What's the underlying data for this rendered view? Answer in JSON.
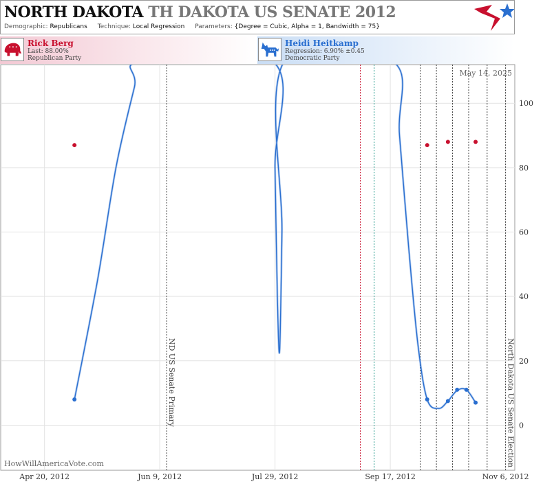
{
  "header": {
    "state": "NORTH DAKOTA",
    "race": "TH DAKOTA US SENATE 2012",
    "demographic_key": "Demographic:",
    "demographic_value": "Republicans",
    "technique_key": "Technique:",
    "technique_value": "Local Regression",
    "parameters_key": "Parameters:",
    "parameters_value": "{Degree = Cubic, Alpha = 1, Bandwidth = 75}"
  },
  "candidates": {
    "rep": {
      "name": "Rick Berg",
      "line1": "Last: 88.00%",
      "line2": "Republican Party",
      "icon": "elephant-icon"
    },
    "dem": {
      "name": "Heidi Heitkamp",
      "line1": "Regression: 6.90% ±0.45",
      "line2": "Democratic Party",
      "icon": "donkey-icon"
    }
  },
  "colors": {
    "rep": "#c8102e",
    "dem": "#2a6fd0"
  },
  "chart_data": {
    "type": "scatter",
    "title": "",
    "date_stamp": "May 14, 2025",
    "watermark": "HowWillAmericaVote.com",
    "xlabel": "",
    "ylabel": "",
    "x_ticks": [
      "Apr 20, 2012",
      "Jun 9, 2012",
      "Jul 29, 2012",
      "Sep 17, 2012",
      "Nov 6, 2012"
    ],
    "x_range": [
      "2012-04-01",
      "2012-11-10"
    ],
    "ylim": [
      -14,
      112
    ],
    "y_ticks": [
      0,
      20,
      40,
      60,
      80,
      100
    ],
    "grid": true,
    "events": [
      {
        "date": "2012-06-12",
        "label": "ND US Senate Primary",
        "color": "#444444"
      },
      {
        "date": "2012-09-04",
        "label": "",
        "color": "#c8102e"
      },
      {
        "date": "2012-09-10",
        "label": "",
        "color": "#2a9d8f"
      },
      {
        "date": "2012-09-30",
        "label": "",
        "color": "#444444"
      },
      {
        "date": "2012-10-07",
        "label": "",
        "color": "#444444"
      },
      {
        "date": "2012-10-14",
        "label": "",
        "color": "#444444"
      },
      {
        "date": "2012-10-21",
        "label": "",
        "color": "#444444"
      },
      {
        "date": "2012-10-29",
        "label": "",
        "color": "#444444"
      },
      {
        "date": "2012-11-06",
        "label": "North Dakota US Senate Election",
        "color": "#444444"
      }
    ],
    "series": [
      {
        "name": "Rick Berg",
        "color": "#c8102e",
        "points": [
          {
            "x": "2012-05-03",
            "y": 87
          },
          {
            "x": "2012-10-03",
            "y": 87
          },
          {
            "x": "2012-10-12",
            "y": 88
          },
          {
            "x": "2012-10-24",
            "y": 88
          }
        ]
      },
      {
        "name": "Heidi Heitkamp",
        "color": "#2a6fd0",
        "points": [
          {
            "x": "2012-05-03",
            "y": 8
          },
          {
            "x": "2012-10-03",
            "y": 8
          },
          {
            "x": "2012-10-12",
            "y": 7.5
          },
          {
            "x": "2012-10-16",
            "y": 11
          },
          {
            "x": "2012-10-20",
            "y": 11
          },
          {
            "x": "2012-10-24",
            "y": 7
          }
        ],
        "regression": [
          {
            "x": "2012-05-03",
            "y": 8
          },
          {
            "x": "2012-05-13",
            "y": 45
          },
          {
            "x": "2012-05-21",
            "y": 80
          },
          {
            "x": "2012-05-29",
            "y": 105
          },
          {
            "x": "2012-06-01",
            "y": 113
          },
          {
            "x": "2012-07-28",
            "y": 113
          },
          {
            "x": "2012-07-29",
            "y": 80
          },
          {
            "x": "2012-07-30",
            "y": 40
          },
          {
            "x": "2012-07-31",
            "y": 23
          },
          {
            "x": "2012-08-01",
            "y": 60
          },
          {
            "x": "2012-08-02",
            "y": 113
          },
          {
            "x": "2012-09-18",
            "y": 113
          },
          {
            "x": "2012-09-21",
            "y": 90
          },
          {
            "x": "2012-09-25",
            "y": 55
          },
          {
            "x": "2012-09-29",
            "y": 25
          },
          {
            "x": "2012-10-03",
            "y": 8
          },
          {
            "x": "2012-10-08",
            "y": 5.2
          },
          {
            "x": "2012-10-12",
            "y": 7.5
          },
          {
            "x": "2012-10-16",
            "y": 10.8
          },
          {
            "x": "2012-10-20",
            "y": 11
          },
          {
            "x": "2012-10-24",
            "y": 7
          }
        ]
      }
    ]
  }
}
